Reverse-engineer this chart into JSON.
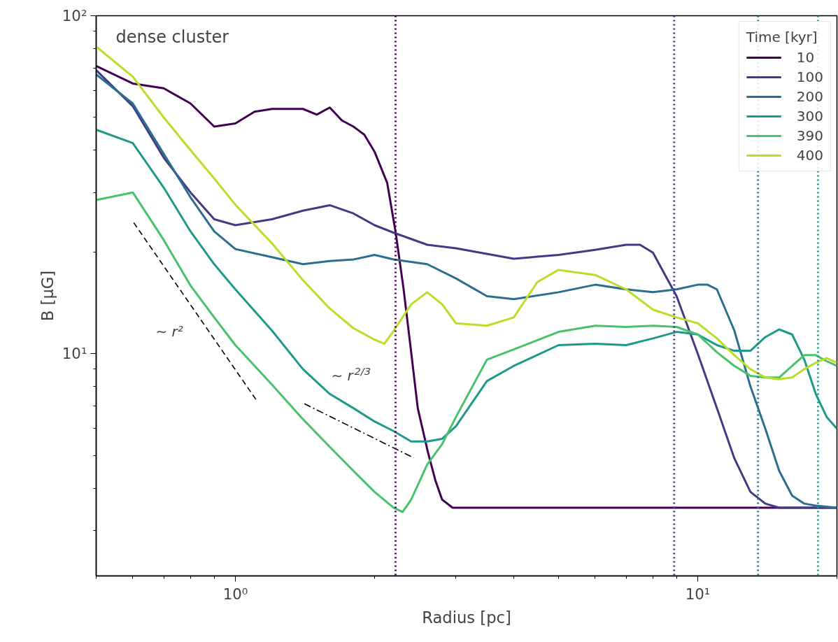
{
  "chart_data": {
    "type": "line",
    "xlabel": "Radius [pc]",
    "ylabel": "B [μG]",
    "legend_title": "Time [kyr]",
    "legend": "top right",
    "log": "xy",
    "grid": false,
    "line_style": "solid",
    "xlim": [
      0.5,
      20
    ],
    "ylim": [
      2.2,
      100
    ],
    "xticks": [
      {
        "value": 1,
        "label": "10⁰"
      },
      {
        "value": 10,
        "label": "10¹"
      }
    ],
    "yticks": [
      {
        "value": 10,
        "label": "10¹"
      },
      {
        "value": 100,
        "label": "10²"
      }
    ],
    "annotations": [
      "dense cluster",
      "∼ r²",
      "∼ r$^{2/3}$"
    ],
    "ref_lines": [
      {
        "axis": "x",
        "value": 2.22,
        "color": "#440154",
        "line_style": "dotted"
      },
      {
        "axis": "x",
        "value": 8.89,
        "color": "#443a83",
        "line_style": "dotted"
      },
      {
        "axis": "x",
        "value": 13.5,
        "color": "#2c6e8e",
        "line_style": "dotted"
      },
      {
        "axis": "x",
        "value": 18.2,
        "color": "#1f9a8a",
        "line_style": "dotted"
      }
    ],
    "series": [
      {
        "name": "10",
        "color": "#440154",
        "x": [
          0.5,
          0.6,
          0.7,
          0.8,
          0.9,
          1.0,
          1.1,
          1.2,
          1.4,
          1.5,
          1.6,
          1.7,
          1.8,
          1.9,
          2.0,
          2.13,
          2.22,
          2.31,
          2.39,
          2.48,
          2.61,
          2.71,
          2.8,
          2.95,
          5,
          10,
          20
        ],
        "values": [
          71,
          63,
          61,
          55,
          47,
          48,
          52,
          53,
          53,
          51,
          53.5,
          49,
          47,
          44.5,
          39.6,
          32,
          23,
          15.6,
          10.6,
          6.9,
          5.1,
          4.2,
          3.7,
          3.5,
          3.5,
          3.5,
          3.5
        ]
      },
      {
        "name": "100",
        "color": "#443a83",
        "x": [
          0.5,
          0.6,
          0.7,
          0.8,
          0.9,
          1.0,
          1.2,
          1.4,
          1.6,
          1.8,
          2.0,
          2.2,
          2.6,
          3.0,
          4,
          5,
          6,
          7,
          7.5,
          8,
          9,
          10,
          11,
          12,
          13,
          14,
          15,
          20
        ],
        "values": [
          69,
          54,
          38,
          30,
          25,
          24,
          25,
          26.5,
          27.5,
          26,
          24,
          22.8,
          21,
          20.5,
          19.1,
          19.6,
          20.3,
          21,
          21,
          19.9,
          14.8,
          10,
          6.9,
          4.9,
          3.9,
          3.6,
          3.5,
          3.5
        ]
      },
      {
        "name": "200",
        "color": "#2c6e8e",
        "x": [
          0.5,
          0.6,
          0.7,
          0.8,
          0.9,
          1.0,
          1.2,
          1.4,
          1.6,
          1.8,
          2.0,
          2.2,
          2.6,
          3.0,
          3.5,
          4,
          5,
          6,
          7,
          8,
          9,
          10,
          10.5,
          11,
          12,
          13,
          14,
          15,
          16,
          17,
          18,
          20
        ],
        "values": [
          67,
          55,
          39,
          29,
          23,
          20.4,
          19.3,
          18.4,
          18.8,
          19,
          19.6,
          19,
          18.4,
          16.7,
          14.8,
          14.5,
          15.2,
          16,
          15.5,
          15.2,
          15.5,
          16,
          16,
          15.5,
          11.7,
          8,
          6,
          4.5,
          3.8,
          3.6,
          3.55,
          3.5
        ]
      },
      {
        "name": "300",
        "color": "#1f9a8a",
        "x": [
          0.5,
          0.6,
          0.7,
          0.8,
          0.9,
          1.0,
          1.2,
          1.4,
          1.6,
          1.8,
          2.0,
          2.2,
          2.4,
          2.6,
          2.8,
          3.0,
          3.5,
          4,
          5,
          6,
          7,
          8,
          9,
          10,
          11,
          12,
          13,
          14,
          15,
          16,
          17,
          18,
          19,
          20
        ],
        "values": [
          46,
          42,
          31,
          23,
          18.4,
          15.5,
          11.7,
          9,
          7.6,
          6.9,
          6.3,
          5.9,
          5.5,
          5.5,
          5.6,
          6.1,
          8.3,
          9.2,
          10.6,
          10.7,
          10.6,
          11.1,
          11.6,
          11.4,
          10.6,
          10.2,
          10.2,
          11.2,
          11.8,
          11.4,
          9.6,
          7.6,
          6.5,
          6
        ]
      },
      {
        "name": "390",
        "color": "#4ac16d",
        "x": [
          0.5,
          0.6,
          0.7,
          0.8,
          0.9,
          1.0,
          1.2,
          1.4,
          1.6,
          1.8,
          2.0,
          2.2,
          2.3,
          2.4,
          2.6,
          2.8,
          3.0,
          3.5,
          4,
          5,
          6,
          7,
          8,
          9,
          10,
          11,
          12,
          13,
          14,
          15,
          16,
          17,
          18,
          19,
          20
        ],
        "values": [
          28.5,
          30,
          21.7,
          15.9,
          12.8,
          10.6,
          8.1,
          6.4,
          5.3,
          4.5,
          3.9,
          3.5,
          3.4,
          3.7,
          4.7,
          5.4,
          6.5,
          9.6,
          10.3,
          11.6,
          12.1,
          12,
          12.1,
          12,
          11.4,
          10.1,
          9.2,
          8.6,
          8.5,
          8.5,
          9.2,
          9.9,
          9.9,
          9.5,
          9.2
        ]
      },
      {
        "name": "400",
        "color": "#bade28",
        "x": [
          0.5,
          0.6,
          0.7,
          0.8,
          0.9,
          1.0,
          1.2,
          1.4,
          1.6,
          1.8,
          2.0,
          2.1,
          2.2,
          2.4,
          2.6,
          2.8,
          3.0,
          3.5,
          4,
          4.5,
          5,
          6,
          7,
          8,
          9,
          10,
          11,
          12,
          13,
          14,
          15,
          16,
          17,
          18,
          19,
          20
        ],
        "values": [
          81,
          66,
          50,
          40,
          33,
          27.6,
          21.2,
          16.5,
          13.6,
          11.9,
          11,
          10.7,
          11.7,
          14,
          15.2,
          14,
          12.3,
          12.1,
          12.8,
          16.3,
          17.7,
          17.1,
          15.5,
          13.5,
          12.8,
          12.3,
          11.1,
          9.9,
          9,
          8.5,
          8.4,
          8.5,
          9,
          9.4,
          9.7,
          9.4
        ]
      },
      {
        "color": "#000000",
        "line_style": "dashed",
        "x": [
          0.603,
          1.11
        ],
        "values": [
          24.4,
          7.29
        ]
      },
      {
        "color": "#000000",
        "line_style": "dashdot",
        "x": [
          1.41,
          2.43
        ],
        "values": [
          7.11,
          4.92
        ]
      }
    ]
  }
}
